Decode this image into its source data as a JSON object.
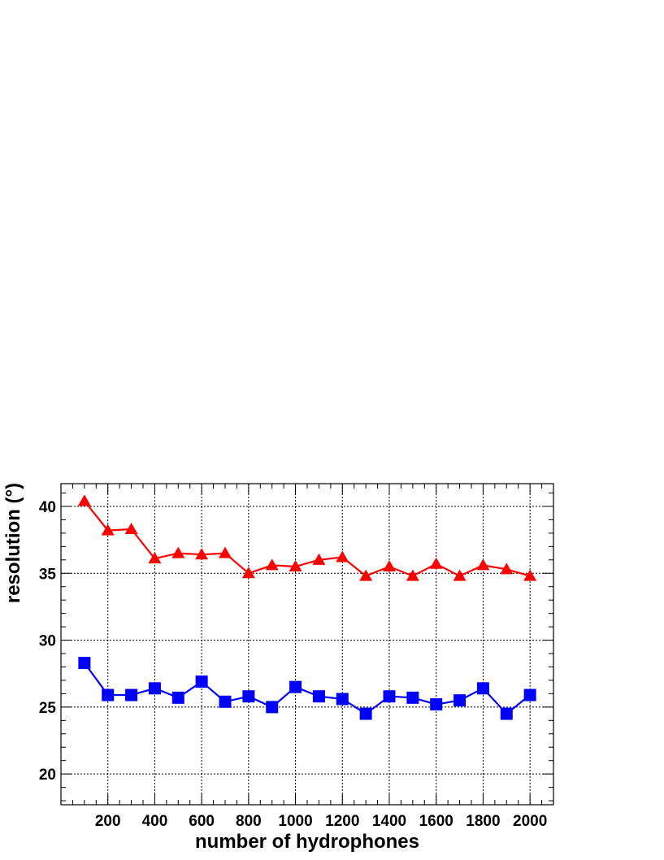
{
  "chart_data": {
    "type": "line",
    "title": "",
    "xlabel": "number of hydrophones",
    "ylabel": "resolution (°)",
    "xlim": [
      0,
      2100
    ],
    "ylim": [
      17.7,
      41.7
    ],
    "x_ticks": [
      200,
      400,
      600,
      800,
      1000,
      1200,
      1400,
      1600,
      1800,
      2000
    ],
    "y_ticks": [
      20,
      25,
      30,
      35,
      40
    ],
    "grid": true,
    "x": [
      100,
      200,
      300,
      400,
      500,
      600,
      700,
      800,
      900,
      1000,
      1100,
      1200,
      1300,
      1400,
      1500,
      1600,
      1700,
      1800,
      1900,
      2000
    ],
    "series": [
      {
        "marker": "triangle",
        "color": "#ff0000",
        "values": [
          40.4,
          38.2,
          38.3,
          36.1,
          36.5,
          36.4,
          36.5,
          35.0,
          35.6,
          35.5,
          36.0,
          36.2,
          34.8,
          35.5,
          34.8,
          35.7,
          34.8,
          35.6,
          35.3,
          34.8
        ]
      },
      {
        "marker": "square",
        "color": "#0000ff",
        "values": [
          28.3,
          25.9,
          25.9,
          26.4,
          25.7,
          26.9,
          25.4,
          25.8,
          25.0,
          26.5,
          25.8,
          25.6,
          24.5,
          25.8,
          25.7,
          25.2,
          25.5,
          26.4,
          24.5,
          25.9
        ]
      }
    ]
  }
}
